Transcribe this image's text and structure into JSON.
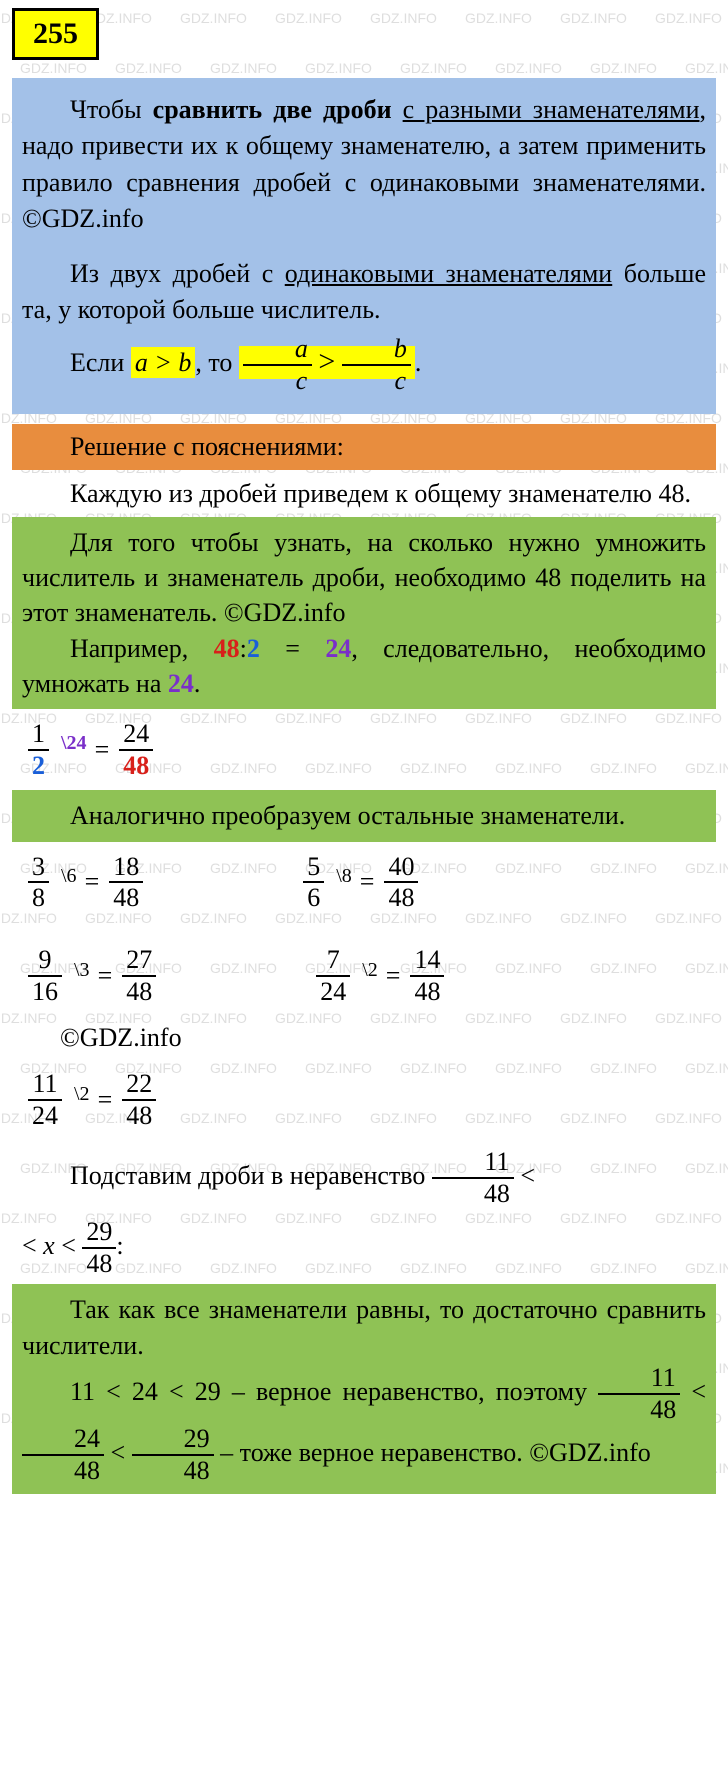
{
  "watermark_text": "GDZ.INFO",
  "badge": "255",
  "blue": {
    "p1_a": "Чтобы ",
    "p1_bold": "сравнить две дроби",
    "p1_b": " ",
    "p1_u1": "с разными знаменателями",
    "p1_c": ", надо привести их к общему знаменателю, а затем применить правило сравнения дробей с одинаковыми знаменателями. ©GDZ.info",
    "p2_a": "Из двух дробей с ",
    "p2_u": "одинаковыми знаменателями",
    "p2_b": " больше та, у которой больше числитель.",
    "p3_a": "Если ",
    "p3_hl1": "a > b",
    "p3_b": ", то ",
    "frac1_n": "a",
    "frac1_d": "c",
    "gt": ">",
    "frac2_n": "b",
    "frac2_d": "c",
    "p3_end": "."
  },
  "orange": {
    "title": "Решение с пояснениями:"
  },
  "w1": "Каждую из дробей приведем к общему знаменателю 48.",
  "g1": {
    "p1": "Для того чтобы узнать, на сколько нужно умножить числитель и знаменатель дроби, необходимо 48 поделить на этот знаменатель. ©GDZ.info",
    "p2_a": "Например,  ",
    "p2_48": "48",
    "p2_colon": ":",
    "p2_2": "2",
    "p2_eq": " = ",
    "p2_24": "24",
    "p2_b": ",  следовательно, необходимо умножать на ",
    "p2_24b": "24",
    "p2_end": "."
  },
  "conv1": {
    "sup": "\\24",
    "n1": "1",
    "d1": "2",
    "n2": "24",
    "d2": "48"
  },
  "g2": "Аналогично преобразуем остальные знаменатели.",
  "conv2a": {
    "sup": "\\6",
    "n1": "3",
    "d1": "8",
    "n2": "18",
    "d2": "48"
  },
  "conv2b": {
    "sup": "\\8",
    "n1": "5",
    "d1": "6",
    "n2": "40",
    "d2": "48"
  },
  "conv3a": {
    "sup": "\\3",
    "n1": "9",
    "d1": "16",
    "n2": "27",
    "d2": "48"
  },
  "conv3b": {
    "sup": "\\2",
    "n1": "7",
    "d1": "24",
    "n2": "14",
    "d2": "48"
  },
  "copy": "©GDZ.info",
  "conv4": {
    "sup": "\\2",
    "n1": "11",
    "d1": "24",
    "n2": "22",
    "d2": "48"
  },
  "w2": {
    "a": "Подставим дроби в неравенство ",
    "f1n": "11",
    "f1d": "48",
    "lt1": " <",
    "b": "< ",
    "x": "x",
    "c": " < ",
    "f2n": "29",
    "f2d": "48",
    "end": ":"
  },
  "g3": {
    "p1": "Так как все знаменатели равны, то достаточно сравнить числители.",
    "p2a": "11 < 24 < 29  –  верное неравенство, поэтому   ",
    "f1n": "11",
    "f1d": "48",
    "lt": " < ",
    "f2n": "24",
    "f2d": "48",
    "f3n": "29",
    "f3d": "48",
    "p2b": "  –  тоже верное неравенство. ©GDZ.info"
  },
  "colors": {
    "yellow": "#ffff00",
    "blue_bg": "#a3c1e8",
    "orange_bg": "#e88d3e",
    "green_bg": "#8fc255",
    "red": "#d8201a",
    "blue": "#1a5fd8",
    "purple": "#7a2fc9"
  },
  "eq": " = "
}
